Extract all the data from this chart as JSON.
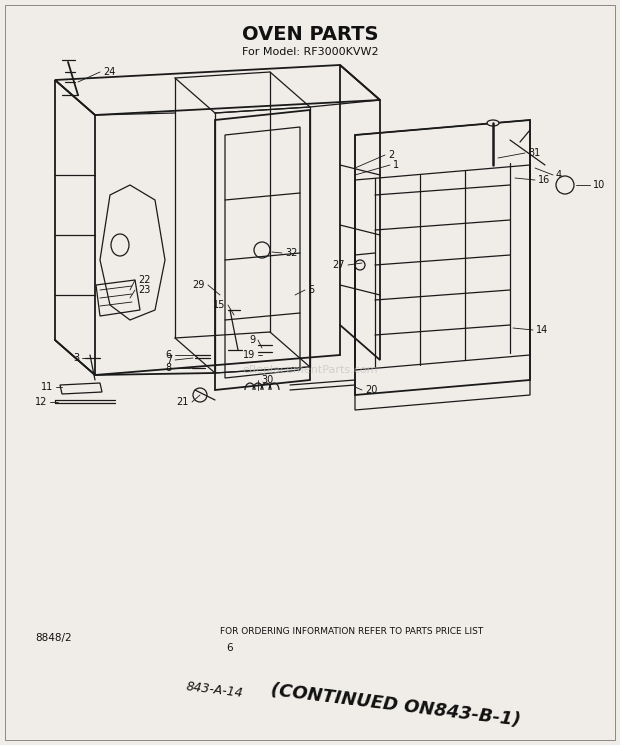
{
  "title": "OVEN PARTS",
  "subtitle": "For Model: RF3000KVW2",
  "bg_color": "#f0ede8",
  "line_color": "#1a1a1a",
  "text_color": "#111111",
  "footer_left": "8848/2",
  "footer_center": "FOR ORDERING INFORMATION REFER TO PARTS PRICE LIST",
  "footer_page": "6",
  "footer_ref": "843-A-14",
  "footer_continued": "(CONTINUED ON843-B-1)",
  "watermark": "eReplacementParts.com"
}
